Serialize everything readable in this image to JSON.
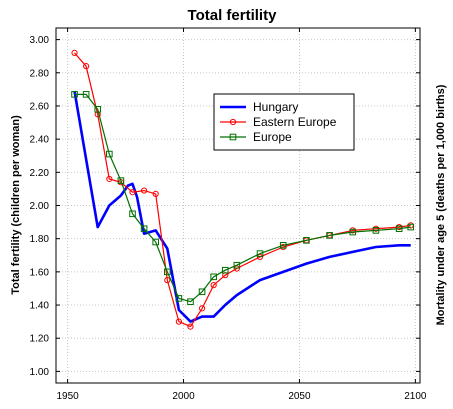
{
  "chart_data": {
    "type": "line",
    "title": "Total fertility",
    "ylabel": "Total fertility (children per woman)",
    "y2label": "Mortality under age 5 (deaths per 1,000 births)",
    "xlim": [
      1945,
      2102
    ],
    "ylim": [
      0.93,
      3.07
    ],
    "xticks": [
      1950,
      2000,
      2050,
      2100
    ],
    "yticks": [
      1.0,
      1.2,
      1.4,
      1.6,
      1.8,
      2.0,
      2.2,
      2.4,
      2.6,
      2.8,
      3.0
    ],
    "ytick_labels": [
      "1.00",
      "1.20",
      "1.40",
      "1.60",
      "1.80",
      "2.00",
      "2.20",
      "2.40",
      "2.60",
      "2.80",
      "3.00"
    ],
    "grid": true,
    "legend_position": "upper-center",
    "series": [
      {
        "name": "Hungary",
        "color": "#0000ff",
        "marker": "none",
        "x": [
          1953,
          1958,
          1963,
          1968,
          1973,
          1976,
          1978,
          1980,
          1983,
          1988,
          1993,
          1998,
          2003,
          2008,
          2013,
          2018,
          2023,
          2033,
          2043,
          2053,
          2063,
          2073,
          2083,
          2093,
          2098
        ],
        "y": [
          2.69,
          2.28,
          1.87,
          2.0,
          2.06,
          2.12,
          2.13,
          2.05,
          1.83,
          1.85,
          1.74,
          1.37,
          1.3,
          1.33,
          1.33,
          1.4,
          1.46,
          1.55,
          1.6,
          1.65,
          1.69,
          1.72,
          1.75,
          1.76,
          1.76
        ]
      },
      {
        "name": "Eastern Europe",
        "color": "#ff0000",
        "marker": "circle",
        "x": [
          1953,
          1958,
          1963,
          1968,
          1973,
          1978,
          1983,
          1988,
          1993,
          1998,
          2003,
          2008,
          2013,
          2018,
          2023,
          2033,
          2043,
          2053,
          2063,
          2073,
          2083,
          2093,
          2098
        ],
        "y": [
          2.92,
          2.84,
          2.55,
          2.16,
          2.14,
          2.08,
          2.09,
          2.07,
          1.55,
          1.3,
          1.27,
          1.38,
          1.52,
          1.58,
          1.62,
          1.69,
          1.75,
          1.79,
          1.82,
          1.85,
          1.86,
          1.87,
          1.88
        ]
      },
      {
        "name": "Europe",
        "color": "#007000",
        "marker": "square",
        "x": [
          1953,
          1958,
          1963,
          1968,
          1973,
          1978,
          1983,
          1988,
          1993,
          1998,
          2003,
          2008,
          2013,
          2018,
          2023,
          2033,
          2043,
          2053,
          2063,
          2073,
          2083,
          2093,
          2098
        ],
        "y": [
          2.67,
          2.67,
          2.58,
          2.31,
          2.15,
          1.95,
          1.86,
          1.78,
          1.6,
          1.44,
          1.42,
          1.48,
          1.57,
          1.61,
          1.64,
          1.71,
          1.76,
          1.79,
          1.82,
          1.84,
          1.85,
          1.86,
          1.87
        ]
      }
    ]
  }
}
